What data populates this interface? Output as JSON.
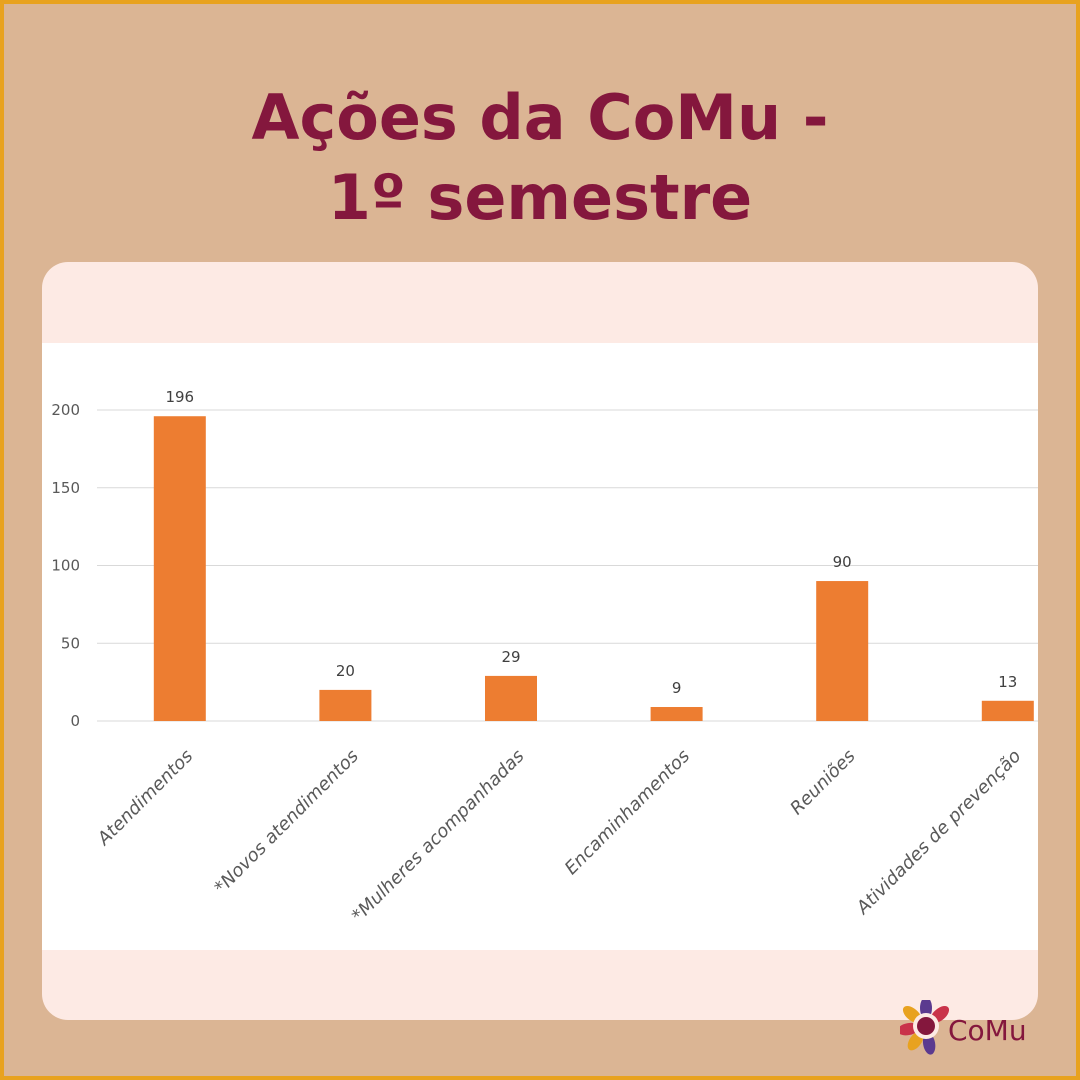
{
  "title_line1": "Ações da CoMu -",
  "title_line2": "1º semestre",
  "logo_text": "CoMu",
  "colors": {
    "background": "#dbb594",
    "border": "#e8a21f",
    "title": "#84173d",
    "bar": "#ed7d31",
    "card": "#fdeae4"
  },
  "chart_data": {
    "type": "bar",
    "categories": [
      "Atendimentos",
      "*Novos atendimentos",
      "*Mulheres acompanhadas",
      "Encaminhamentos",
      "Reuniões",
      "Atividades de prevenção"
    ],
    "values": [
      196,
      20,
      29,
      9,
      90,
      13
    ],
    "ylim": [
      0,
      200
    ],
    "yticks": [
      0,
      50,
      100,
      150,
      200
    ],
    "grid": true,
    "data_labels": true
  }
}
